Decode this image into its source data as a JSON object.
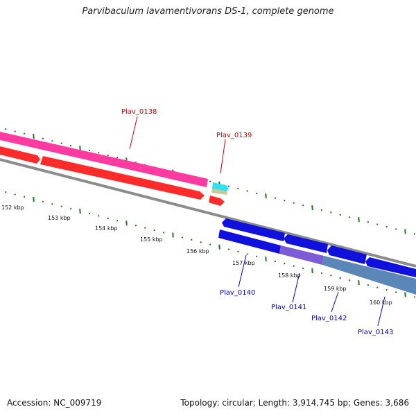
{
  "title": "Parvibaculum lavamentivorans DS-1, complete genome",
  "footer": {
    "accession": "Accession: NC_009719",
    "summary": "Topology: circular; Length: 3,914,745 bp; Genes: 3,686"
  },
  "colors": {
    "backbone": "#8c8c8c",
    "tick": "#1f7a1f",
    "forward_gene": "#ff2a2a",
    "forward_cds_pink": "#ff3aa0",
    "reverse_gene": "#1111dd",
    "reverse_cds_purple": "#7b5cd6",
    "reverse_cds_steel": "#5a86b8",
    "forward_label": "#cc0000",
    "reverse_label": "#0000cc",
    "rna_cyan": "#33e0f0",
    "rna_tan": "#c8c890"
  },
  "scale": {
    "kbp_labels": [
      "152 kbp",
      "153 kbp",
      "154 kbp",
      "155 kbp",
      "156 kbp",
      "157 kbp",
      "158 kbp",
      "159 kbp",
      "160 kbp"
    ]
  },
  "genes": [
    {
      "locus": "Plav_0138",
      "strand": "forward",
      "features": [
        "gene",
        "CDS"
      ]
    },
    {
      "locus": "Plav_0139",
      "strand": "forward",
      "features": [
        "gene",
        "rRNA/tRNA"
      ]
    },
    {
      "locus": "Plav_0140",
      "strand": "reverse",
      "features": [
        "gene",
        "CDS"
      ]
    },
    {
      "locus": "Plav_0141",
      "strand": "reverse",
      "features": [
        "gene",
        "CDS"
      ]
    },
    {
      "locus": "Plav_0142",
      "strand": "reverse",
      "features": [
        "gene",
        "CDS"
      ]
    },
    {
      "locus": "Plav_0143",
      "strand": "reverse",
      "features": [
        "gene",
        "CDS"
      ]
    }
  ]
}
